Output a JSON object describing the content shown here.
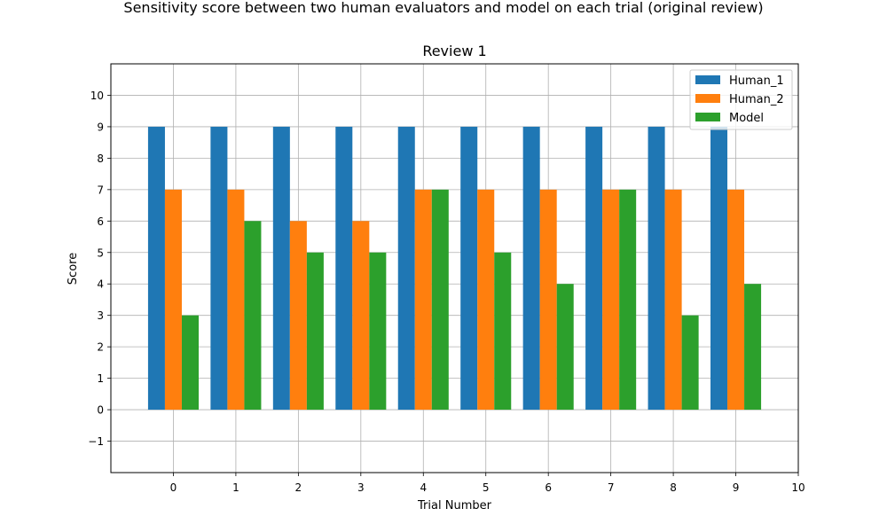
{
  "suptitle": "Sensitivity score between two human evaluators and model on each trial (original review)",
  "colors": {
    "Human_1": "#1f77b4",
    "Human_2": "#ff7f0e",
    "Model": "#2ca02c",
    "grid": "#b0b0b0"
  },
  "chart_data": {
    "type": "bar",
    "title": "Review 1",
    "xlabel": "Trial Number",
    "ylabel": "Score",
    "categories": [
      0,
      1,
      2,
      3,
      4,
      5,
      6,
      7,
      8,
      9
    ],
    "xticks": [
      0,
      1,
      2,
      3,
      4,
      5,
      6,
      7,
      8,
      9,
      10
    ],
    "yticks": [
      -1,
      0,
      1,
      2,
      3,
      4,
      5,
      6,
      7,
      8,
      9,
      10
    ],
    "xlim": [
      -1,
      10
    ],
    "ylim": [
      -2,
      11
    ],
    "grid": true,
    "legend": "top-right",
    "series": [
      {
        "name": "Human_1",
        "values": [
          9,
          9,
          9,
          9,
          9,
          9,
          9,
          9,
          9,
          9
        ]
      },
      {
        "name": "Human_2",
        "values": [
          7,
          7,
          6,
          6,
          7,
          7,
          7,
          7,
          7,
          7
        ]
      },
      {
        "name": "Model",
        "values": [
          3,
          6,
          5,
          5,
          7,
          5,
          4,
          7,
          3,
          4
        ]
      }
    ]
  }
}
